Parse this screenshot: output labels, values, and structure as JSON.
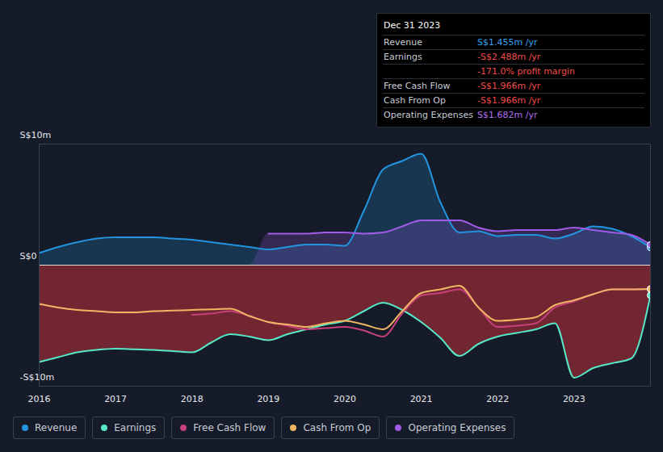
{
  "chart_data": {
    "type": "line",
    "x": [
      2016,
      2016.25,
      2016.5,
      2016.75,
      2017,
      2017.25,
      2017.5,
      2017.75,
      2018,
      2018.25,
      2018.5,
      2018.75,
      2019,
      2019.25,
      2019.5,
      2019.75,
      2020,
      2020.25,
      2020.5,
      2020.75,
      2021,
      2021.25,
      2021.5,
      2021.75,
      2022,
      2022.25,
      2022.5,
      2022.75,
      2023,
      2023.25,
      2023.5,
      2023.75,
      2024
    ],
    "xlim": [
      2016,
      2024
    ],
    "xticks": [
      2016,
      2017,
      2018,
      2019,
      2020,
      2021,
      2022,
      2023
    ],
    "ylim": [
      -10,
      10
    ],
    "yticks": [
      {
        "value": 10,
        "label": "S$10m"
      },
      {
        "value": 0,
        "label": "S$0"
      },
      {
        "value": -10,
        "label": "-S$10m"
      }
    ],
    "grid": true,
    "legend": "bottom",
    "series": [
      {
        "name": "Revenue",
        "color": "#2394df",
        "type": "area",
        "values": [
          1.0,
          1.5,
          1.9,
          2.2,
          2.3,
          2.3,
          2.3,
          2.2,
          2.1,
          1.9,
          1.7,
          1.5,
          1.3,
          1.5,
          1.7,
          1.7,
          1.6,
          4.5,
          7.9,
          8.6,
          9.2,
          5.2,
          2.7,
          2.8,
          2.4,
          2.5,
          2.5,
          2.2,
          2.6,
          3.2,
          3.0,
          2.4,
          1.455
        ]
      },
      {
        "name": "Earnings",
        "color": "#58e8c6",
        "type": "area",
        "values": [
          -8.0,
          -7.6,
          -7.2,
          -7.0,
          -6.9,
          -6.95,
          -7.0,
          -7.1,
          -7.2,
          -6.4,
          -5.7,
          -5.9,
          -6.2,
          -5.7,
          -5.3,
          -4.9,
          -4.6,
          -3.8,
          -3.1,
          -3.7,
          -4.7,
          -6.0,
          -7.5,
          -6.5,
          -5.9,
          -5.6,
          -5.3,
          -4.8,
          -9.3,
          -8.5,
          -8.1,
          -7.7,
          -2.488
        ]
      },
      {
        "name": "Free Cash Flow",
        "color": "#c9417b",
        "type": "line",
        "values": [
          null,
          null,
          null,
          null,
          null,
          null,
          null,
          null,
          -4.1,
          -4.0,
          -3.8,
          -4.2,
          -4.7,
          -5.0,
          -5.3,
          -5.2,
          -5.1,
          -5.4,
          -5.9,
          -4.0,
          -2.5,
          -2.3,
          -2.0,
          -3.5,
          -5.1,
          -5.0,
          -4.8,
          -3.5,
          -3.0,
          -2.4,
          -2.0,
          -2.0,
          -1.966
        ]
      },
      {
        "name": "Cash From Op",
        "color": "#f0b563",
        "type": "line",
        "values": [
          -3.2,
          -3.5,
          -3.7,
          -3.8,
          -3.9,
          -3.9,
          -3.8,
          -3.75,
          -3.7,
          -3.65,
          -3.6,
          -4.2,
          -4.7,
          -4.9,
          -5.1,
          -4.8,
          -4.6,
          -4.9,
          -5.3,
          -3.8,
          -2.3,
          -2.0,
          -1.7,
          -3.5,
          -4.6,
          -4.5,
          -4.3,
          -3.3,
          -2.9,
          -2.4,
          -2.0,
          -2.0,
          -1.966
        ]
      },
      {
        "name": "Operating Expenses",
        "color": "#a25ae8",
        "type": "area",
        "values": [
          null,
          null,
          null,
          null,
          null,
          null,
          null,
          null,
          null,
          null,
          null,
          null,
          2.6,
          2.6,
          2.6,
          2.7,
          2.7,
          2.6,
          2.7,
          3.2,
          3.7,
          3.7,
          3.7,
          3.1,
          2.8,
          2.9,
          2.9,
          2.9,
          3.1,
          2.9,
          2.7,
          2.5,
          1.682
        ]
      }
    ],
    "summary": {
      "title": "Dec 31 2023",
      "rows": [
        {
          "label": "Revenue",
          "value": "S$1.455m /yr",
          "color": "#3aa0f0"
        },
        {
          "label": "Earnings",
          "value": "-S$2.488m /yr",
          "color": "#f04b4b"
        },
        {
          "value": "-171.0% profit margin",
          "color": "#f04b4b"
        },
        {
          "label": "Free Cash Flow",
          "value": "-S$1.966m /yr",
          "color": "#f04b4b"
        },
        {
          "label": "Cash From Op",
          "value": "-S$1.966m /yr",
          "color": "#f04b4b"
        },
        {
          "label": "Operating Expenses",
          "value": "S$1.682m /yr",
          "color": "#b06ef0"
        }
      ]
    }
  }
}
